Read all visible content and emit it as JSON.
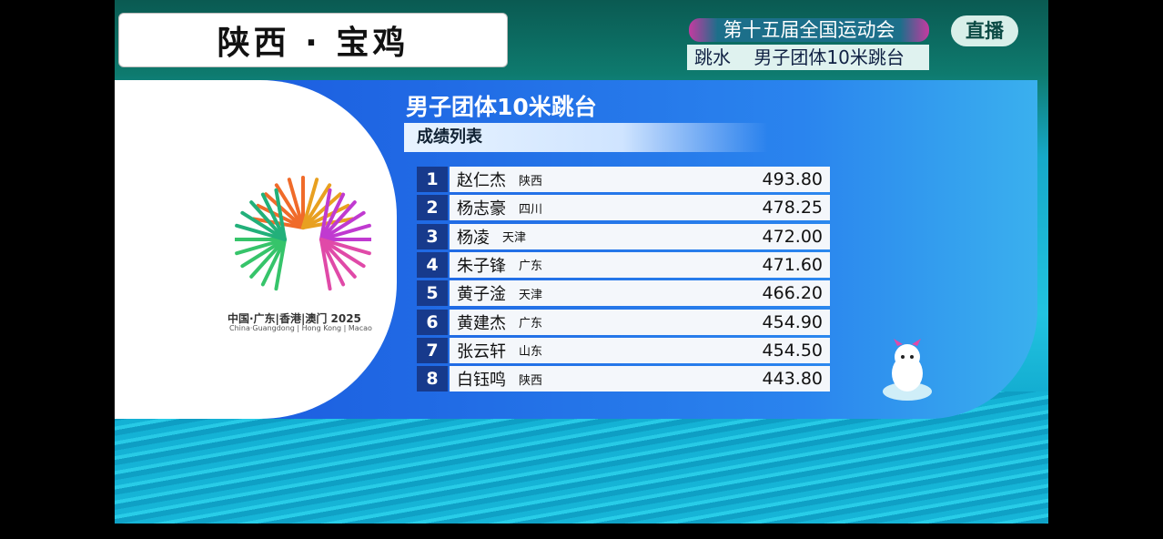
{
  "caption": "陕西 · 宝鸡",
  "header": {
    "games": "第十五届全国运动会",
    "event": "跳水    男子团体10米跳台",
    "live_badge": "直播"
  },
  "logo": {
    "text": "中国·广东|香港|澳门 2025",
    "subtext": "China·Guangdong | Hong Kong | Macao"
  },
  "board": {
    "title": "男子团体10米跳台",
    "subtitle": "成绩列表",
    "rows": [
      {
        "rank": "1",
        "name": "赵仁杰",
        "province": "陕西",
        "score": "493.80"
      },
      {
        "rank": "2",
        "name": "杨志豪",
        "province": "四川",
        "score": "478.25"
      },
      {
        "rank": "3",
        "name": "杨凌",
        "province": "天津",
        "score": "472.00"
      },
      {
        "rank": "4",
        "name": "朱子锋",
        "province": "广东",
        "score": "471.60"
      },
      {
        "rank": "5",
        "name": "黄子淦",
        "province": "天津",
        "score": "466.20"
      },
      {
        "rank": "6",
        "name": "黄建杰",
        "province": "广东",
        "score": "454.90"
      },
      {
        "rank": "7",
        "name": "张云轩",
        "province": "山东",
        "score": "454.50"
      },
      {
        "rank": "8",
        "name": "白钰鸣",
        "province": "陕西",
        "score": "443.80"
      }
    ]
  },
  "colors": {
    "panel": "#1c5ee0",
    "rank_bg": "#173a8c"
  }
}
